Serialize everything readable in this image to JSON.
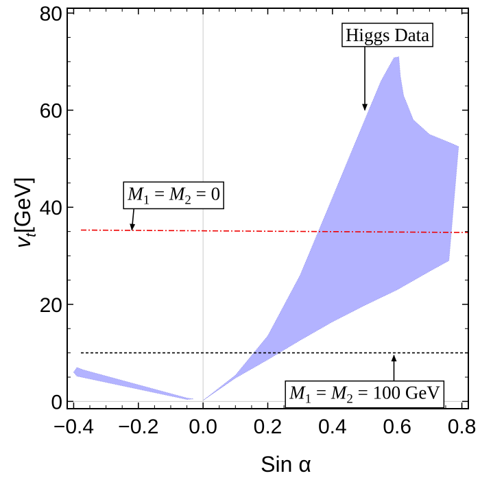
{
  "chart_data": {
    "type": "area",
    "xlabel": "Sin α",
    "ylabel_main": "v",
    "ylabel_sub": "t",
    "ylabel_unit": "[GeV]",
    "xlim": [
      -0.42,
      0.82
    ],
    "ylim": [
      -1.5,
      81
    ],
    "xticks": [
      -0.4,
      -0.2,
      0.0,
      0.2,
      0.4,
      0.6,
      0.8
    ],
    "xtick_labels": [
      "−0.4",
      "−0.2",
      "0.0",
      "0.2",
      "0.4",
      "0.6",
      "0.8"
    ],
    "yticks": [
      0,
      20,
      40,
      60,
      80
    ],
    "ytick_labels": [
      "0",
      "20",
      "40",
      "60",
      "80"
    ],
    "region_color": "#b3b3ff",
    "regions": [
      {
        "name": "Higgs Data (positive branch)",
        "points": [
          [
            0.0,
            0.2
          ],
          [
            0.05,
            2.5
          ],
          [
            0.1,
            4.8
          ],
          [
            0.2,
            8.6
          ],
          [
            0.3,
            12.6
          ],
          [
            0.4,
            16.4
          ],
          [
            0.5,
            19.8
          ],
          [
            0.6,
            23.0
          ],
          [
            0.7,
            26.8
          ],
          [
            0.76,
            29.0
          ],
          [
            0.79,
            52.5
          ],
          [
            0.77,
            53.1
          ],
          [
            0.7,
            55.0
          ],
          [
            0.65,
            58.0
          ],
          [
            0.62,
            63.0
          ],
          [
            0.61,
            67.0
          ],
          [
            0.605,
            71.0
          ],
          [
            0.59,
            70.8
          ],
          [
            0.55,
            66.0
          ],
          [
            0.5,
            58.0
          ],
          [
            0.45,
            50.0
          ],
          [
            0.4,
            42.0
          ],
          [
            0.35,
            34.0
          ],
          [
            0.3,
            26.0
          ],
          [
            0.2,
            13.5
          ],
          [
            0.1,
            5.4
          ],
          [
            0.0,
            0.2
          ]
        ]
      },
      {
        "name": "Higgs Data (negative branch)",
        "points": [
          [
            -0.4,
            6.0
          ],
          [
            -0.39,
            7.0
          ],
          [
            -0.37,
            6.5
          ],
          [
            -0.05,
            0.7
          ],
          [
            -0.03,
            0.5
          ],
          [
            -0.05,
            0.4
          ],
          [
            -0.39,
            5.2
          ],
          [
            -0.4,
            6.0
          ]
        ]
      }
    ],
    "lines": [
      {
        "name": "M1 = M2 = 0",
        "y_start": 35.3,
        "y_end": 34.8,
        "color": "#ee0000",
        "style": "dash-dot"
      },
      {
        "name": "M1 = M2 = 100 GeV",
        "y": 10.0,
        "color": "#000000",
        "style": "dashed"
      }
    ],
    "annotations": [
      {
        "text": "Higgs Data",
        "text_x": 0.57,
        "text_y": 75.5,
        "arrow_to": [
          0.5,
          60.0
        ]
      },
      {
        "text_main": "M",
        "sub1": "1",
        "text_mid": " = ",
        "main2": "M",
        "sub2": "2",
        "text_end": " = 0",
        "text_x": -0.09,
        "text_y": 42.8,
        "arrow_to": [
          -0.22,
          35.3
        ]
      },
      {
        "text_main": "M",
        "sub1": "1",
        "text_mid": " = ",
        "main2": "M",
        "sub2": "2",
        "text_end": " = 100 GeV",
        "text_x": 0.5,
        "text_y": 1.8,
        "arrow_to": [
          0.59,
          9.5
        ]
      }
    ]
  }
}
